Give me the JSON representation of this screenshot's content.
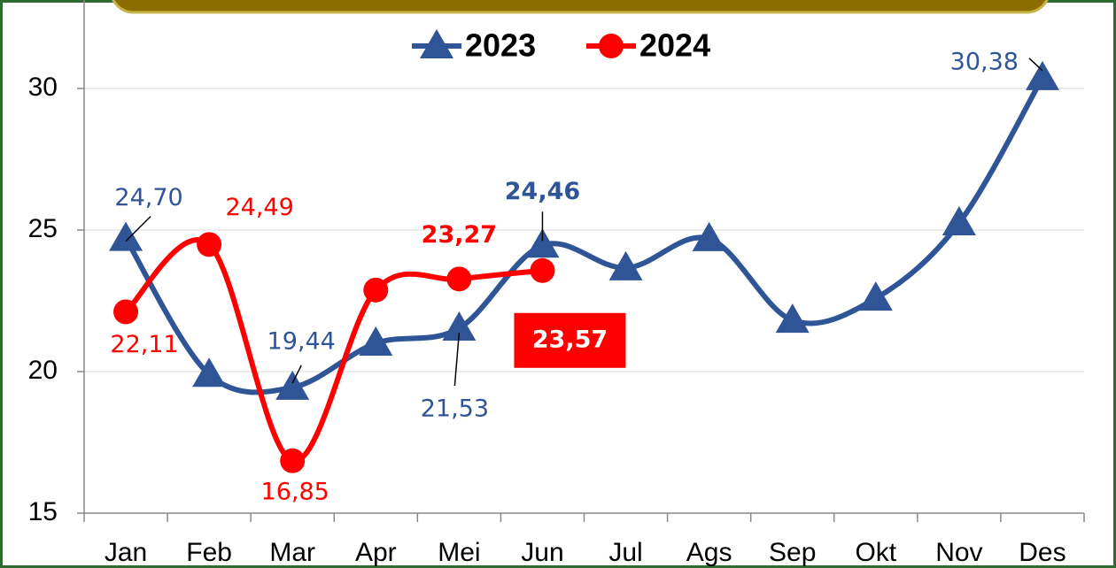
{
  "chart_data": {
    "type": "line",
    "categories": [
      "Jan",
      "Feb",
      "Mar",
      "Apr",
      "Mei",
      "Jun",
      "Jul",
      "Ags",
      "Sep",
      "Okt",
      "Nov",
      "Des"
    ],
    "series": [
      {
        "name": "2023",
        "color": "#2f5597",
        "marker": "triangle",
        "values": [
          24.7,
          19.9,
          19.44,
          21.0,
          21.53,
          24.46,
          23.66,
          24.69,
          21.81,
          22.59,
          25.25,
          30.38
        ],
        "value_labels": [
          "24,70",
          null,
          "19,44",
          null,
          "21,53",
          "24,46",
          null,
          null,
          null,
          null,
          null,
          "30,38"
        ]
      },
      {
        "name": "2024",
        "color": "#ff0000",
        "marker": "circle",
        "values": [
          22.11,
          24.49,
          16.85,
          22.88,
          23.27,
          23.57,
          null,
          null,
          null,
          null,
          null,
          null
        ],
        "value_labels": [
          "22,11",
          "24,49",
          "16,85",
          null,
          "23,27",
          "23,57",
          null,
          null,
          null,
          null,
          null,
          null
        ]
      }
    ],
    "ylim": [
      15,
      33
    ],
    "yticks": [
      15,
      20,
      25,
      30
    ],
    "grid": true
  }
}
